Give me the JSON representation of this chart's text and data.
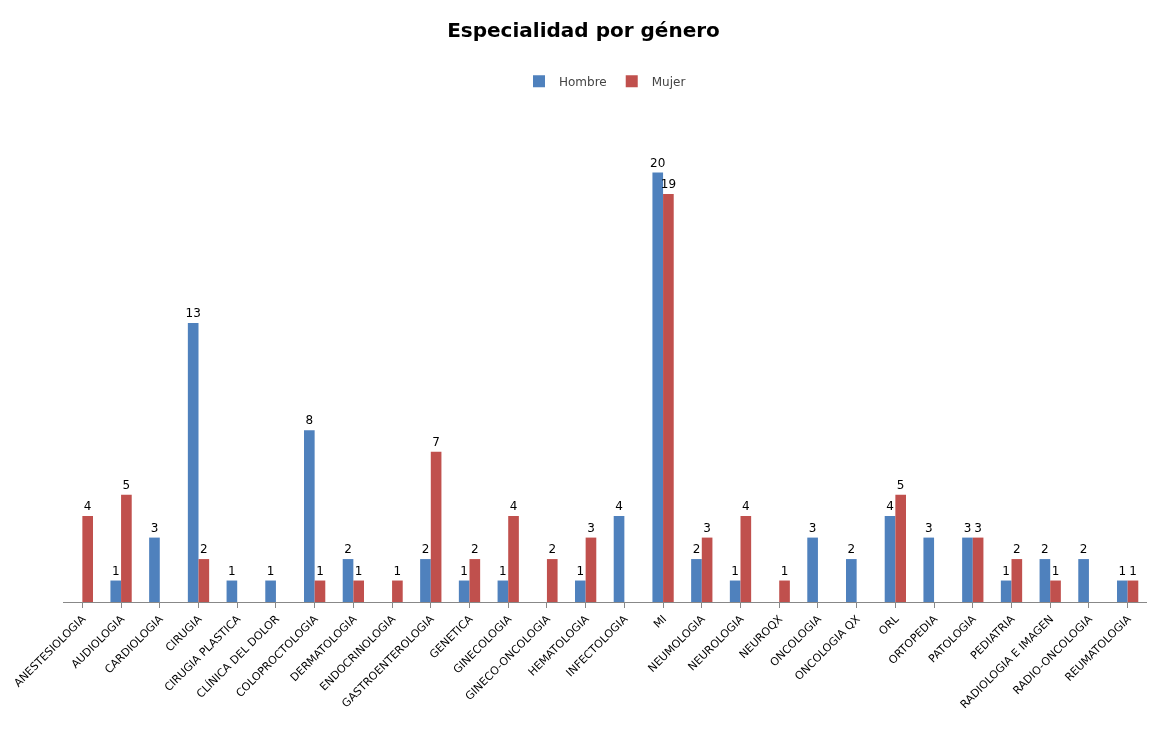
{
  "chart_data": {
    "type": "bar",
    "title": "Especialidad por género",
    "categories": [
      "ANESTESIOLOGIA",
      "AUDIOLOGIA",
      "CARDIOLOGIA",
      "CIRUGIA",
      "CIRUGIA PLASTICA",
      "CLÍNICA DEL DOLOR",
      "COLOPROCTOLOGIA",
      "DERMATOLOGIA",
      "ENDOCRINOLOGIA",
      "GASTROENTEROLOGIA",
      "GENETICA",
      "GINECOLOGIA",
      "GINECO-ONCOLOGIA",
      "HEMATOLOGIA",
      "INFECTOLOGIA",
      "MI",
      "NEUMOLOGIA",
      "NEUROLOGIA",
      "NEUROQX",
      "ONCOLOGIA",
      "ONCOLOGIA QX",
      "ORL",
      "ORTOPEDIA",
      "PATOLOGIA",
      "PEDIATRIA",
      "RADIOLOGIA E IMAGEN",
      "RADIO-ONCOLOGIA",
      "REUMATOLOGIA"
    ],
    "series": [
      {
        "name": "Hombre",
        "color": "#4f81bd",
        "values": [
          null,
          1,
          3,
          13,
          1,
          1,
          8,
          2,
          null,
          2,
          1,
          1,
          null,
          1,
          4,
          20,
          2,
          1,
          null,
          3,
          2,
          4,
          3,
          3,
          1,
          2,
          2,
          1
        ]
      },
      {
        "name": "Mujer",
        "color": "#c0504d",
        "values": [
          4,
          5,
          null,
          2,
          null,
          null,
          1,
          1,
          1,
          7,
          2,
          4,
          2,
          3,
          null,
          19,
          3,
          4,
          1,
          null,
          null,
          5,
          null,
          3,
          2,
          1,
          null,
          1
        ]
      }
    ],
    "data_labels": true,
    "legend": "top",
    "grid": false
  }
}
